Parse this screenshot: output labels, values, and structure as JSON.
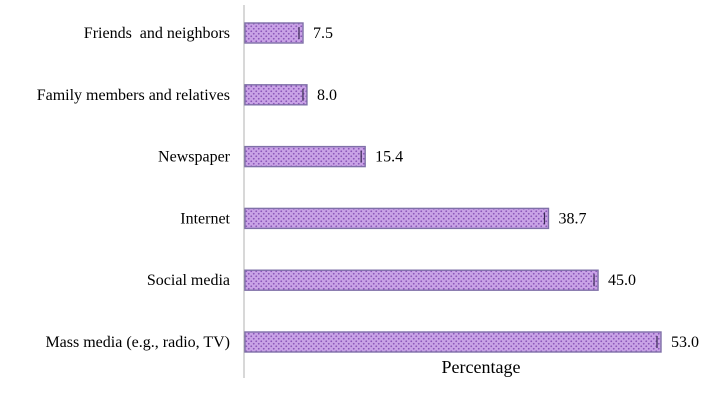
{
  "chart_data": {
    "type": "bar",
    "orientation": "horizontal",
    "categories": [
      "Friends  and neighbors",
      "Family members and relatives",
      "Newspaper",
      "Internet",
      "Social media",
      "Mass media (e.g., radio, TV)"
    ],
    "values": [
      7.5,
      8.0,
      15.4,
      38.7,
      45.0,
      53.0
    ],
    "value_labels": [
      "7.5",
      "8.0",
      "15.4",
      "38.7",
      "45.0",
      "53.0"
    ],
    "title": "",
    "xlabel": "Percentage",
    "ylabel": "",
    "xlim": [
      0,
      53
    ],
    "grid": false,
    "legend": "none",
    "colors": {
      "bar_fill": "#c9a3e6",
      "bar_pattern": "#8a55b8",
      "bar_border": "#7f70a8",
      "axis": "#b0b0b0"
    }
  }
}
